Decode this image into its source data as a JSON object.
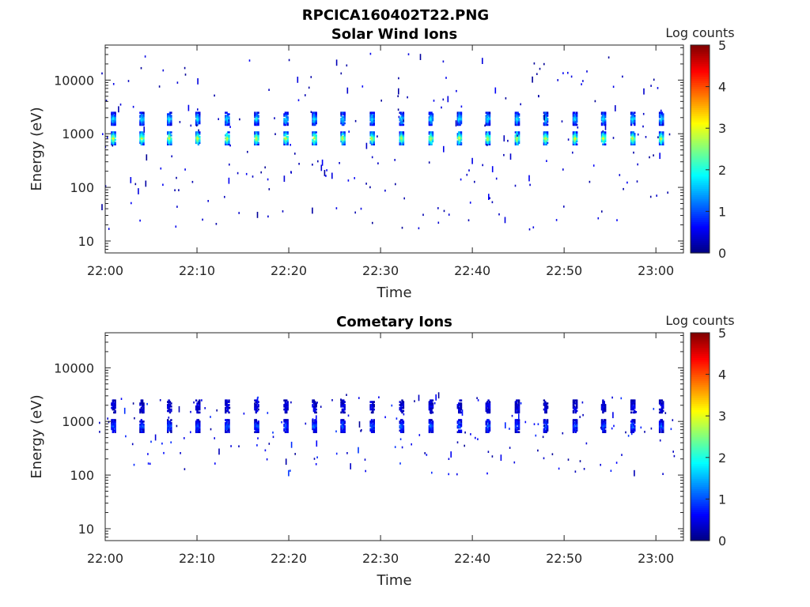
{
  "figure_title": "RPCICA160402T22.PNG",
  "chart_data": [
    {
      "type": "heatmap",
      "title": "Solar Wind Ions",
      "xlabel": "Time",
      "ylabel": "Energy (eV)",
      "x_ticks": [
        "22:00",
        "22:10",
        "22:20",
        "22:30",
        "22:40",
        "22:50",
        "23:00"
      ],
      "xlim": [
        "22:00",
        "23:03"
      ],
      "y_scale": "log",
      "y_ticks": [
        10,
        100,
        1000,
        10000
      ],
      "ylim": [
        6,
        45000
      ],
      "colorbar": {
        "label": "Log counts",
        "range": [
          0,
          5
        ],
        "ticks": [
          0,
          1,
          2,
          3,
          4,
          5
        ],
        "colormap": "jet"
      },
      "burst_times_min": [
        0.8,
        3.9,
        6.9,
        10.0,
        13.2,
        16.4,
        19.6,
        22.7,
        25.8,
        29.0,
        32.2,
        35.4,
        38.5,
        41.6,
        44.8,
        47.9,
        51.1,
        54.2,
        57.4,
        60.5
      ],
      "bands": [
        {
          "energy_center_eV": 820,
          "peak_log_counts": 3.2
        },
        {
          "energy_center_eV": 1900,
          "peak_log_counts": 2.0
        }
      ]
    },
    {
      "type": "heatmap",
      "title": "Cometary Ions",
      "xlabel": "Time",
      "ylabel": "Energy (eV)",
      "x_ticks": [
        "22:00",
        "22:10",
        "22:20",
        "22:30",
        "22:40",
        "22:50",
        "23:00"
      ],
      "xlim": [
        "22:00",
        "23:03"
      ],
      "y_scale": "log",
      "y_ticks": [
        10,
        100,
        1000,
        10000
      ],
      "ylim": [
        6,
        45000
      ],
      "colorbar": {
        "label": "Log counts",
        "range": [
          0,
          5
        ],
        "ticks": [
          0,
          1,
          2,
          3,
          4,
          5
        ],
        "colormap": "jet"
      },
      "burst_times_min": [
        0.8,
        3.9,
        6.9,
        10.0,
        13.2,
        16.4,
        19.6,
        22.7,
        25.8,
        29.0,
        32.2,
        35.4,
        38.5,
        41.6,
        44.8,
        47.9,
        51.1,
        54.2,
        57.4,
        60.5
      ],
      "bands": [
        {
          "energy_center_eV": 820,
          "peak_log_counts": 1.2
        },
        {
          "energy_center_eV": 1900,
          "peak_log_counts": 0.6
        }
      ]
    }
  ]
}
